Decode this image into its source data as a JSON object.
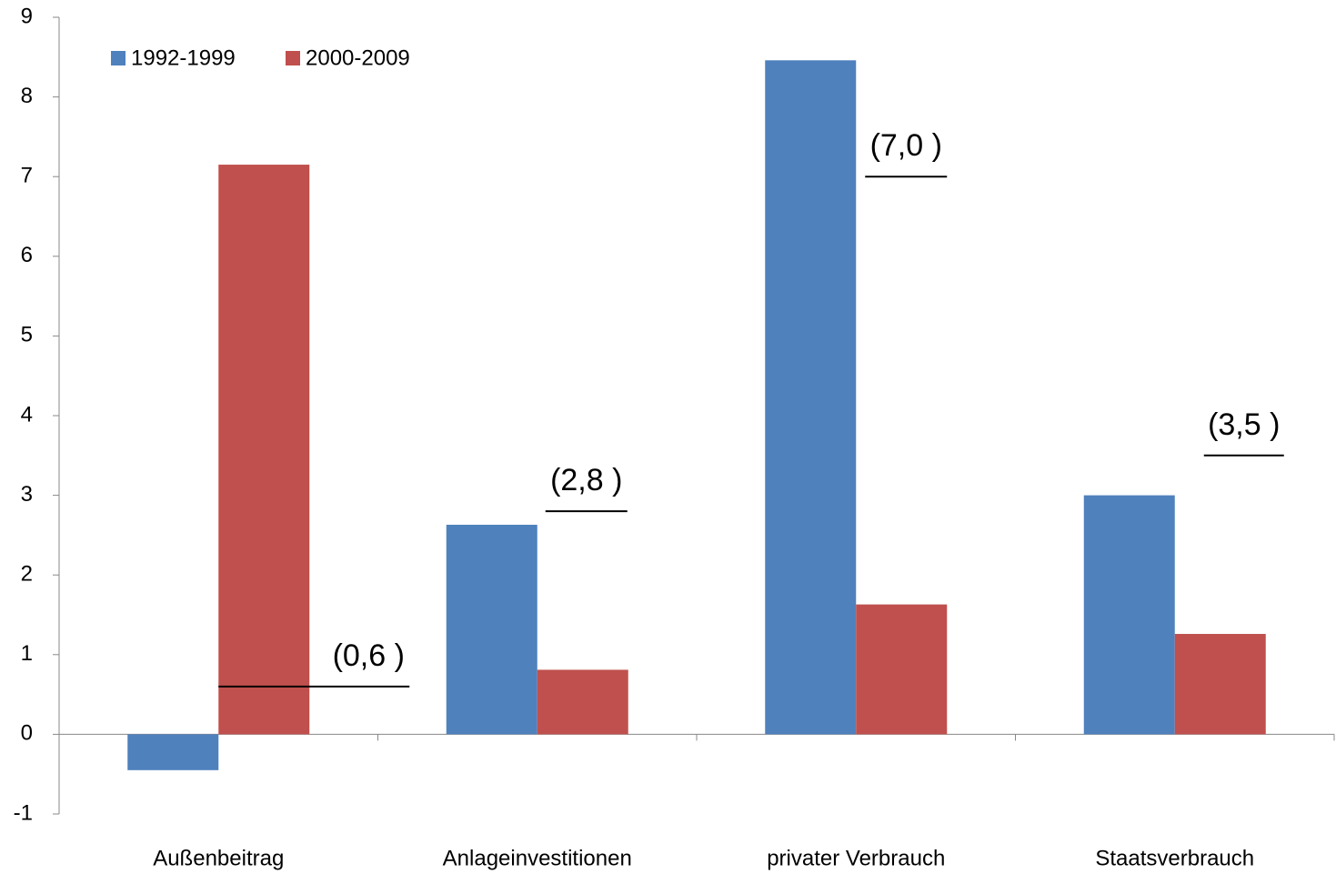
{
  "chart_data": {
    "type": "bar",
    "categories": [
      "Außenbeitrag",
      "Anlageinvestitionen",
      "privater Verbrauch",
      "Staatsverbrauch"
    ],
    "series": [
      {
        "name": "1992-1999",
        "color": "#4f81bd",
        "values": [
          -0.45,
          2.63,
          8.46,
          3.0
        ]
      },
      {
        "name": "2000-2009",
        "color": "#c0504d",
        "values": [
          7.15,
          0.81,
          1.63,
          1.26
        ]
      }
    ],
    "ylim": [
      -1,
      9
    ],
    "yticks": [
      -1,
      0,
      1,
      2,
      3,
      4,
      5,
      6,
      7,
      8,
      9
    ],
    "legend": "top-left",
    "annotations": {
      "values": [
        0.6,
        2.8,
        7.0,
        3.5
      ],
      "value_labels": [
        "(0,6 )",
        "(2,8 )",
        "(7,0 )",
        "(3,5 )"
      ]
    }
  }
}
